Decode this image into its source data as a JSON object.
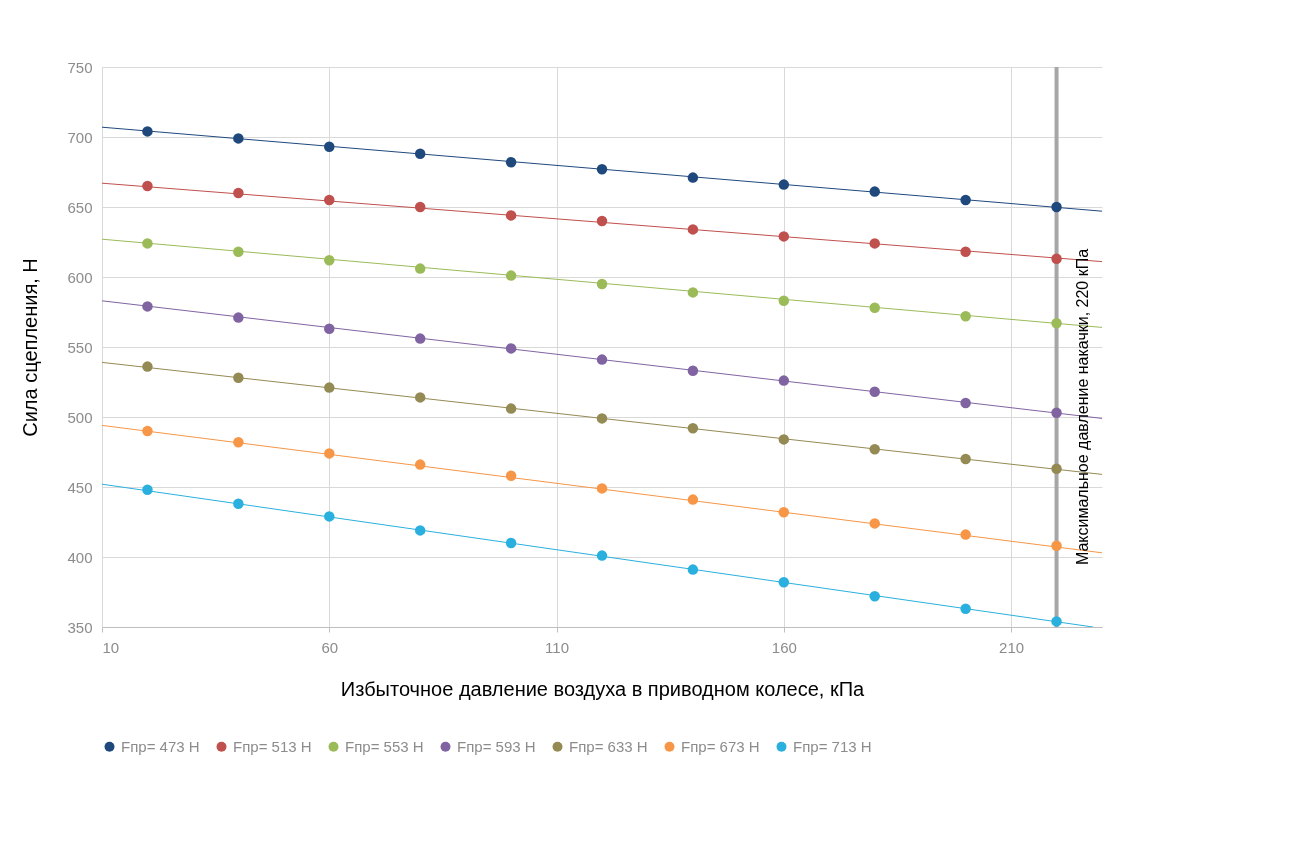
{
  "chart_data": {
    "type": "scatter",
    "xlabel": "Избыточное давление воздуха в приводном колесе, кПа",
    "ylabel": "Сила сцепления, Н",
    "x": [
      20,
      40,
      60,
      80,
      100,
      120,
      140,
      160,
      180,
      200,
      220
    ],
    "series": [
      {
        "name": "Fпр= 473 Н",
        "color": "#1f497d",
        "values": [
          704,
          699,
          693,
          688,
          682,
          677,
          671,
          666,
          661,
          655,
          650
        ]
      },
      {
        "name": "Fпр= 513 Н",
        "color": "#c0504d",
        "values": [
          665,
          660,
          655,
          650,
          644,
          640,
          634,
          629,
          624,
          618,
          613
        ]
      },
      {
        "name": "Fпр= 553 Н",
        "color": "#9bbb59",
        "values": [
          624,
          618,
          612,
          606,
          601,
          595,
          589,
          583,
          578,
          572,
          567
        ]
      },
      {
        "name": "Fпр= 593 Н",
        "color": "#8064a2",
        "values": [
          579,
          571,
          563,
          556,
          549,
          541,
          533,
          526,
          518,
          510,
          503
        ]
      },
      {
        "name": "Fпр= 633 Н",
        "color": "#948a54",
        "values": [
          536,
          528,
          521,
          514,
          506,
          499,
          492,
          484,
          477,
          470,
          463
        ]
      },
      {
        "name": "Fпр= 673 Н",
        "color": "#f79646",
        "values": [
          490,
          482,
          474,
          466,
          458,
          449,
          441,
          432,
          424,
          416,
          408
        ]
      },
      {
        "name": "Fпр= 713 Н",
        "color": "#2ab0de",
        "values": [
          448,
          438,
          429,
          419,
          410,
          401,
          391,
          382,
          372,
          363,
          354
        ]
      },
      {
        "type": "line",
        "marker": "none",
        "color": "#1f497d",
        "x": [
          10,
          230
        ],
        "values": [
          707,
          647
        ]
      },
      {
        "type": "line",
        "marker": "none",
        "color": "#c0504d",
        "x": [
          10,
          230
        ],
        "values": [
          667,
          611
        ]
      },
      {
        "type": "line",
        "marker": "none",
        "color": "#9bbb59",
        "x": [
          10,
          230
        ],
        "values": [
          627,
          564
        ]
      },
      {
        "type": "line",
        "marker": "none",
        "color": "#8064a2",
        "x": [
          10,
          230
        ],
        "values": [
          583,
          499
        ]
      },
      {
        "type": "line",
        "marker": "none",
        "color": "#948a54",
        "x": [
          10,
          230
        ],
        "values": [
          539,
          459
        ]
      },
      {
        "type": "line",
        "marker": "none",
        "color": "#f79646",
        "x": [
          10,
          230
        ],
        "values": [
          494,
          403
        ]
      },
      {
        "type": "line",
        "marker": "none",
        "color": "#2ab0de",
        "x": [
          10,
          228
        ],
        "values": [
          452,
          350
        ]
      }
    ],
    "xlim": [
      10,
      230
    ],
    "xticks": [
      10,
      60,
      110,
      160,
      210
    ],
    "ylim": [
      350,
      750
    ],
    "yticks": [
      350,
      400,
      450,
      500,
      550,
      600,
      650,
      700,
      750
    ],
    "ref_lines": [
      {
        "axis": "x",
        "value": 220,
        "label": "Максимальное давление накачки, 220 кПа",
        "color": "#a6a6a6"
      }
    ],
    "grid": true,
    "legend": "bottom",
    "marker": "circle"
  }
}
